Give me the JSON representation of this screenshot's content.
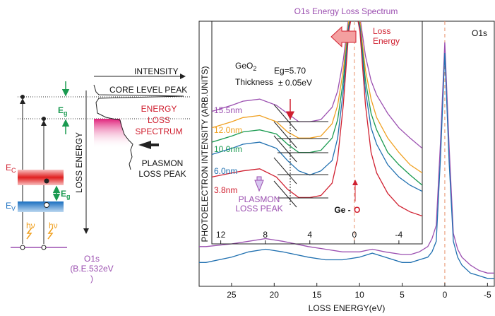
{
  "chart_data": [
    {
      "type": "line",
      "title": "O1s Energy Loss Spectrum",
      "x_label": "LOSS ENERGY(eV)",
      "y_label": "PHOTOELECTRON INTENSITY (ARB.UNITS)",
      "xlim": [
        28.8,
        -5.8
      ],
      "xticks": [
        25,
        20,
        15,
        10,
        5,
        0,
        -5
      ],
      "ylim": [
        0,
        100
      ],
      "x": [
        28.8,
        28,
        25,
        23,
        21,
        19,
        16,
        14,
        12,
        10,
        8.5,
        7,
        5,
        4,
        3,
        2,
        1.5,
        1,
        0.5,
        0,
        -0.5,
        -1,
        -1.5,
        -2,
        -3,
        -4,
        -5,
        -5.8
      ],
      "series": [
        {
          "color": "#9b4fb0",
          "values": [
            15,
            15,
            16,
            17,
            18,
            17,
            15,
            14,
            13,
            13,
            14,
            13,
            12,
            12,
            13,
            15,
            18,
            23,
            55,
            92,
            53,
            20,
            14,
            11,
            8,
            6,
            5,
            5
          ]
        },
        {
          "color": "#2070b0",
          "values": [
            9,
            9,
            11,
            13,
            14,
            13,
            11,
            10,
            10,
            11,
            12.5,
            11,
            9,
            9,
            10,
            11,
            13,
            17,
            49,
            88,
            47,
            17,
            11,
            8,
            5,
            4,
            3,
            3
          ]
        }
      ],
      "annotations": {
        "core": "O1s"
      },
      "vline": 0
    },
    {
      "type": "line",
      "xlim": [
        12.8,
        -6.1
      ],
      "xticks": [
        12,
        8,
        4,
        0,
        -4
      ],
      "ylim": [
        0,
        100
      ],
      "x": [
        12.8,
        11,
        10,
        8.5,
        7,
        6,
        5,
        4,
        3,
        2,
        1.5,
        1,
        0.5,
        0,
        -0.5,
        -1,
        -1.5,
        -2,
        -3,
        -4,
        -5,
        -6.1
      ],
      "series": [
        {
          "name": "15.5nm",
          "color": "#9b4fb0",
          "values": [
            56,
            59,
            61,
            62,
            59,
            55,
            51,
            51,
            52,
            58,
            66,
            81,
            102,
            110,
            102,
            83,
            71,
            64,
            55,
            48,
            43,
            38
          ]
        },
        {
          "name": "12.0nm",
          "color": "#f0a020",
          "values": [
            48,
            51,
            53,
            54,
            51,
            46,
            43,
            43,
            44,
            50,
            59,
            76,
            100,
            110,
            100,
            76,
            62,
            53,
            43,
            36,
            30,
            26
          ]
        },
        {
          "name": "10.0nm",
          "color": "#1a9a50",
          "values": [
            41,
            44,
            46,
            47,
            45,
            40,
            36,
            36,
            37,
            43,
            52,
            71,
            98,
            110,
            98,
            71,
            55,
            47,
            36,
            30,
            25,
            20
          ]
        },
        {
          "name": "6.0nm",
          "color": "#2070b0",
          "values": [
            35,
            38,
            40,
            41,
            38,
            32,
            27,
            25,
            27,
            32,
            43,
            66,
            97,
            110,
            97,
            66,
            48,
            40,
            30,
            24,
            20,
            17
          ]
        },
        {
          "name": "3.8nm",
          "color": "#d02030",
          "values": [
            24,
            26,
            27,
            28,
            24,
            18,
            14,
            14,
            15,
            21,
            33,
            59,
            95,
            110,
            95,
            59,
            36,
            26,
            16,
            10,
            7,
            5
          ]
        }
      ],
      "annotations": {
        "sample": {
          "main": "GeO",
          "sub": "2"
        },
        "thickness": "Thickness",
        "eg": "Eg=5.70",
        "eg_err": "± 0.05eV",
        "loss_energy": [
          "Loss",
          "Energy"
        ],
        "bond_ge": "Ge - ",
        "bond_o": "O",
        "plasmon": [
          "PLASMON",
          "LOSS PEAK"
        ]
      },
      "vline": 0
    }
  ],
  "schematic": {
    "intensity": "INTENSITY",
    "core_level_peak": "CORE LEVEL PEAK",
    "energy_loss_spectrum": [
      "ENERGY",
      "LOSS",
      "SPECTRUM"
    ],
    "loss_energy": "LOSS ENERGY",
    "plasmon_loss_peak": [
      "PLASMON",
      "LOSS PEAK"
    ],
    "eg_top": {
      "main": "E",
      "sub": "g"
    },
    "eg_band": {
      "main": "E",
      "sub": "g"
    },
    "ec": {
      "main": "E",
      "sub": "C"
    },
    "ev": {
      "main": "E",
      "sub": "V"
    },
    "hv": [
      "hν",
      "hν"
    ],
    "o1s": [
      "O1s",
      "(B.E.532eV",
      ")"
    ]
  }
}
